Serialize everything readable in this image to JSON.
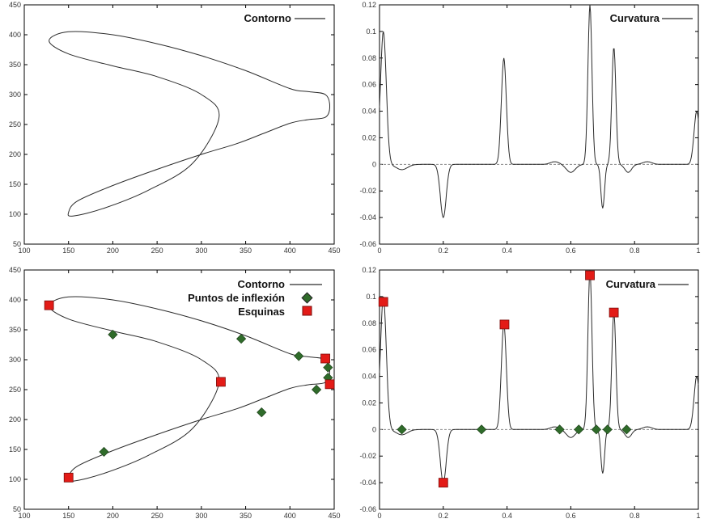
{
  "colors": {
    "line": "#2b2b2b",
    "axis": "#000000",
    "zero_line": "#8a8a8a",
    "corner": "#e31b17",
    "inflection": "#2f6b2a"
  },
  "chart_data": [
    {
      "id": "contour-top",
      "type": "line",
      "xlim": [
        100,
        450
      ],
      "ylim": [
        50,
        450
      ],
      "xticks": [
        100,
        150,
        200,
        250,
        300,
        350,
        400,
        450
      ],
      "yticks": [
        50,
        100,
        150,
        200,
        250,
        300,
        350,
        400,
        450
      ],
      "legend": [
        "Contorno"
      ],
      "legend_position": "top-right",
      "series": [
        {
          "name": "Contorno",
          "closed": true,
          "x": [
            128,
            150,
            200,
            250,
            300,
            350,
            400,
            420,
            440,
            445,
            440,
            420,
            400,
            370,
            340,
            300,
            250,
            200,
            160,
            150,
            155,
            190,
            240,
            290,
            320,
            300,
            250,
            200,
            150,
            128
          ],
          "y": [
            390,
            405,
            400,
            385,
            365,
            340,
            310,
            305,
            300,
            280,
            262,
            258,
            252,
            235,
            218,
            200,
            175,
            148,
            122,
            103,
            97,
            110,
            140,
            185,
            262,
            300,
            330,
            348,
            368,
            390
          ]
        }
      ]
    },
    {
      "id": "curvature-top",
      "type": "line",
      "xlim": [
        0,
        1
      ],
      "ylim": [
        -0.06,
        0.12
      ],
      "xticks": [
        0,
        0.2,
        0.4,
        0.6,
        0.8,
        1
      ],
      "yticks": [
        -0.06,
        -0.04,
        -0.02,
        0,
        0.02,
        0.04,
        0.06,
        0.08,
        0.1,
        0.12
      ],
      "legend": [
        "Curvatura"
      ],
      "legend_position": "top-right",
      "baseline": 0,
      "series": [
        {
          "name": "Curvatura",
          "base": 0,
          "tail": [
            0.995,
            0.04,
            0.012
          ],
          "peaks": [
            [
              0.012,
              0.1,
              0.013
            ],
            [
              0.07,
              -0.004,
              0.025
            ],
            [
              0.2,
              -0.04,
              0.013
            ],
            [
              0.39,
              0.08,
              0.011
            ],
            [
              0.55,
              0.002,
              0.02
            ],
            [
              0.6,
              -0.006,
              0.02
            ],
            [
              0.66,
              0.12,
              0.009
            ],
            [
              0.7,
              -0.033,
              0.008
            ],
            [
              0.735,
              0.088,
              0.009
            ],
            [
              0.78,
              -0.006,
              0.015
            ],
            [
              0.84,
              0.002,
              0.02
            ]
          ]
        }
      ]
    },
    {
      "id": "contour-bottom",
      "type": "scatter",
      "xlim": [
        100,
        450
      ],
      "ylim": [
        50,
        450
      ],
      "xticks": [
        100,
        150,
        200,
        250,
        300,
        350,
        400,
        450
      ],
      "yticks": [
        50,
        100,
        150,
        200,
        250,
        300,
        350,
        400,
        450
      ],
      "legend": [
        "Contorno",
        "Puntos de inflexión",
        "Esquinas"
      ],
      "legend_position": "top-right",
      "series": [
        {
          "name": "Contorno",
          "closed": true,
          "x": [
            128,
            150,
            200,
            250,
            300,
            350,
            400,
            420,
            440,
            445,
            440,
            420,
            400,
            370,
            340,
            300,
            250,
            200,
            160,
            150,
            155,
            190,
            240,
            290,
            320,
            300,
            250,
            200,
            150,
            128
          ],
          "y": [
            390,
            405,
            400,
            385,
            365,
            340,
            310,
            305,
            300,
            280,
            262,
            258,
            252,
            235,
            218,
            200,
            175,
            148,
            122,
            103,
            97,
            110,
            140,
            185,
            262,
            300,
            330,
            348,
            368,
            390
          ]
        },
        {
          "name": "Puntos de inflexión",
          "x": [
            200,
            345,
            410,
            443,
            443,
            430,
            368,
            190
          ],
          "y": [
            342,
            335,
            306,
            287,
            270,
            250,
            212,
            146
          ]
        },
        {
          "name": "Esquinas",
          "x": [
            128,
            322,
            440,
            445,
            150
          ],
          "y": [
            391,
            263,
            302,
            259,
            103
          ]
        }
      ]
    },
    {
      "id": "curvature-bottom",
      "type": "scatter",
      "xlim": [
        0,
        1
      ],
      "ylim": [
        -0.06,
        0.12
      ],
      "xticks": [
        0,
        0.2,
        0.4,
        0.6,
        0.8,
        1
      ],
      "yticks": [
        -0.06,
        -0.04,
        -0.02,
        0,
        0.02,
        0.04,
        0.06,
        0.08,
        0.1,
        0.12
      ],
      "legend": [
        "Curvatura"
      ],
      "legend_position": "top-right",
      "baseline": 0,
      "series": [
        {
          "name": "Curvatura",
          "base": 0,
          "tail": [
            0.995,
            0.04,
            0.012
          ],
          "peaks": [
            [
              0.012,
              0.1,
              0.013
            ],
            [
              0.07,
              -0.004,
              0.025
            ],
            [
              0.2,
              -0.04,
              0.013
            ],
            [
              0.39,
              0.08,
              0.011
            ],
            [
              0.55,
              0.002,
              0.02
            ],
            [
              0.6,
              -0.006,
              0.02
            ],
            [
              0.66,
              0.12,
              0.009
            ],
            [
              0.7,
              -0.033,
              0.008
            ],
            [
              0.735,
              0.088,
              0.009
            ],
            [
              0.78,
              -0.006,
              0.015
            ],
            [
              0.84,
              0.002,
              0.02
            ]
          ]
        },
        {
          "name": "Puntos de inflexión",
          "x": [
            0.07,
            0.32,
            0.565,
            0.625,
            0.68,
            0.715,
            0.775
          ],
          "y": [
            0,
            0,
            0,
            0,
            0,
            0,
            0
          ]
        },
        {
          "name": "Esquinas",
          "x": [
            0.012,
            0.392,
            0.66,
            0.735,
            0.2
          ],
          "y": [
            0.096,
            0.079,
            0.116,
            0.088,
            -0.04
          ]
        }
      ]
    }
  ]
}
